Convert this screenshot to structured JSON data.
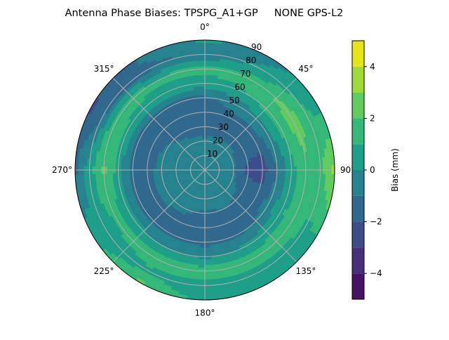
{
  "chart_data": {
    "type": "heatmap",
    "subtype": "polar-contour",
    "title": "Antenna Phase Biases: TPSPG_A1+GP     NONE GPS-L2",
    "angular_axis": {
      "direction": "clockwise",
      "zero_location": "top",
      "tick_labels": [
        "0°",
        "45°",
        "90°",
        "135°",
        "180°",
        "225°",
        "270°",
        "315°"
      ],
      "tick_values": [
        0,
        45,
        90,
        135,
        180,
        225,
        270,
        315
      ]
    },
    "radial_axis": {
      "label_meaning": "zenith angle (deg)",
      "range": [
        0,
        90
      ],
      "tick_values": [
        10,
        20,
        30,
        40,
        50,
        60,
        70,
        80,
        90
      ],
      "tick_labels": [
        "10",
        "20",
        "30",
        "40",
        "50",
        "60",
        "70",
        "80",
        "90"
      ]
    },
    "grid": true,
    "zenith": [
      0,
      10,
      20,
      30,
      40,
      50,
      60,
      70,
      80,
      90
    ],
    "azimuth": [
      0,
      30,
      60,
      90,
      120,
      150,
      180,
      210,
      240,
      270,
      300,
      330
    ],
    "values": [
      [
        -0.5,
        -0.5,
        -0.5,
        -0.5,
        -0.5,
        -0.5,
        -0.5,
        -0.5,
        -0.5,
        -0.5,
        -0.5,
        -0.5
      ],
      [
        -0.6,
        -0.6,
        -0.6,
        -0.7,
        -0.6,
        -0.6,
        -0.6,
        -0.6,
        -0.5,
        -0.5,
        -0.6,
        -0.6
      ],
      [
        -0.9,
        -0.8,
        -0.8,
        -0.9,
        -0.7,
        -0.6,
        -0.7,
        -0.6,
        -0.5,
        -0.5,
        -0.6,
        -0.8
      ],
      [
        -1.3,
        -1.2,
        -1.4,
        -2.3,
        -1.3,
        -1.0,
        -1.1,
        -0.8,
        -0.7,
        -0.7,
        -0.9,
        -1.2
      ],
      [
        -1.5,
        -1.3,
        -1.7,
        -2.5,
        -1.6,
        -1.4,
        -1.5,
        -1.3,
        -1.2,
        -1.3,
        -1.4,
        -1.5
      ],
      [
        -1.2,
        -0.5,
        -0.3,
        -1.0,
        -0.6,
        -1.2,
        -1.4,
        -1.2,
        -1.3,
        -1.4,
        -1.3,
        -1.3
      ],
      [
        0.5,
        1.0,
        1.5,
        0.5,
        0.8,
        0.2,
        -0.2,
        0.0,
        0.3,
        0.5,
        0.8,
        0.6
      ],
      [
        1.3,
        1.5,
        2.6,
        1.8,
        1.5,
        1.6,
        1.5,
        1.5,
        1.3,
        2.2,
        1.6,
        1.2
      ],
      [
        -0.8,
        0.2,
        1.2,
        1.6,
        0.8,
        0.7,
        0.5,
        0.8,
        0.0,
        0.6,
        -1.3,
        -1.3
      ],
      [
        0.2,
        -0.3,
        0.5,
        3.5,
        1.0,
        0.2,
        0.5,
        2.3,
        0.5,
        -1.2,
        -2.2,
        -0.8
      ]
    ],
    "colorbar": {
      "label": "Bias (mm)",
      "range": [
        -5,
        5
      ],
      "levels": [
        -5,
        -4,
        -3,
        -2,
        -1,
        0,
        1,
        2,
        3,
        4,
        5
      ],
      "tick_values": [
        -4,
        -2,
        0,
        2,
        4
      ],
      "tick_labels": [
        "−4",
        "−2",
        "0",
        "2",
        "4"
      ],
      "colormap": "viridis",
      "colors": [
        "#471164",
        "#472f7d",
        "#3e4c8a",
        "#31688e",
        "#26828e",
        "#1f9e89",
        "#35b779",
        "#62cb5f",
        "#a0da39",
        "#e5e419"
      ]
    }
  }
}
